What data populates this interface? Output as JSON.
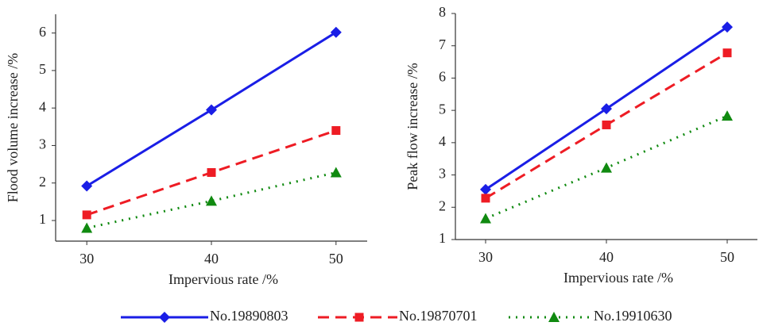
{
  "chart_data": [
    {
      "type": "line",
      "xlabel": "Impervious rate /%",
      "ylabel": "Flood volume increase /%",
      "x": [
        30,
        40,
        50
      ],
      "xlim": [
        27.5,
        52.5
      ],
      "xticks": [
        30,
        40,
        50
      ],
      "ylim": [
        0.45,
        6.5
      ],
      "yticks": [
        1,
        2,
        3,
        4,
        5,
        6
      ],
      "series": [
        {
          "name": "No.19890803",
          "color": "#1a1ee6",
          "dash": "solid",
          "marker": "diamond",
          "values": [
            1.92,
            3.95,
            6.02
          ]
        },
        {
          "name": "No.19870701",
          "color": "#ee1c24",
          "dash": "dashed",
          "marker": "square",
          "values": [
            1.15,
            2.28,
            3.4
          ]
        },
        {
          "name": "No.19910630",
          "color": "#108a10",
          "dash": "dotted",
          "marker": "triangle",
          "values": [
            0.8,
            1.52,
            2.28
          ]
        }
      ]
    },
    {
      "type": "line",
      "xlabel": "Impervious rate /%",
      "ylabel": "Peak flow increase /%",
      "x": [
        30,
        40,
        50
      ],
      "xlim": [
        27.5,
        52.5
      ],
      "xticks": [
        30,
        40,
        50
      ],
      "ylim": [
        1,
        8
      ],
      "yticks": [
        1,
        2,
        3,
        4,
        5,
        6,
        7,
        8
      ],
      "series": [
        {
          "color": "#1a1ee6",
          "dash": "solid",
          "marker": "diamond",
          "values": [
            2.55,
            5.05,
            7.58
          ]
        },
        {
          "color": "#ee1c24",
          "dash": "dashed",
          "marker": "square",
          "values": [
            2.28,
            4.55,
            6.78
          ]
        },
        {
          "color": "#108a10",
          "dash": "dotted",
          "marker": "triangle",
          "values": [
            1.65,
            3.22,
            4.83
          ]
        }
      ]
    }
  ]
}
